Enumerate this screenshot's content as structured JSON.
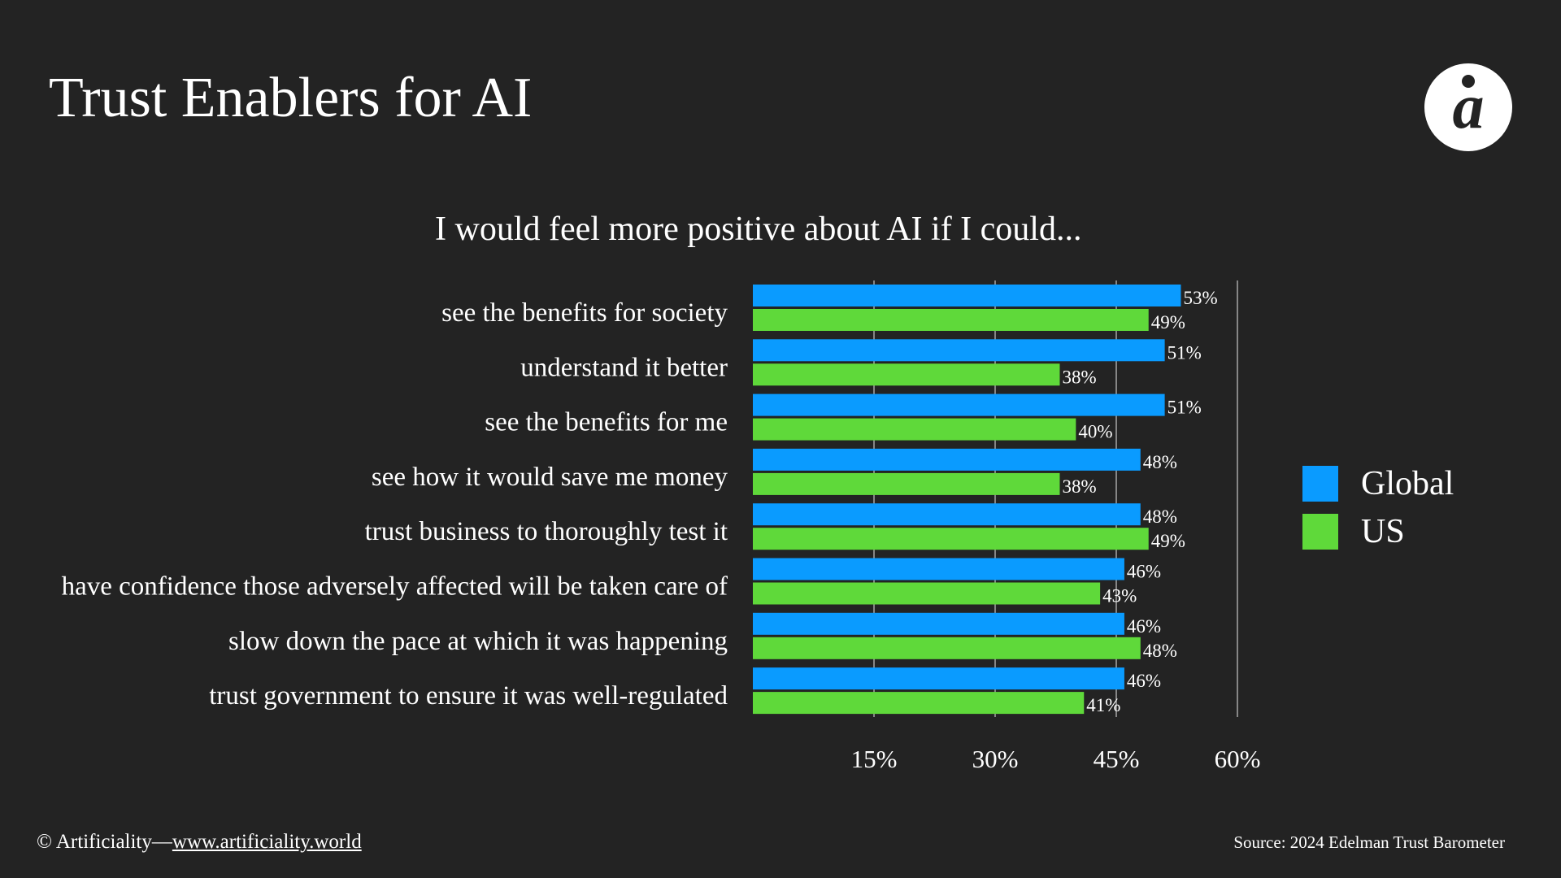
{
  "title": "Trust Enablers for AI",
  "logo_text": "a",
  "footer": {
    "copyright": "© Artificiality—",
    "link": "www.artificiality.world",
    "source": "Source: 2024 Edelman Trust Barometer"
  },
  "colors": {
    "background": "#232323",
    "global": "#0a9bff",
    "us": "#5fd93a"
  },
  "chart_data": {
    "type": "bar",
    "orientation": "horizontal",
    "title": "I would feel more positive about AI if I could...",
    "categories": [
      "see the benefits for society",
      "understand it better",
      "see the benefits for me",
      "see how it would save me money",
      "trust business to thoroughly test it",
      "have confidence those adversely affected will be taken care of",
      "slow down the pace at which it was happening",
      "trust government to ensure it was well-regulated"
    ],
    "series": [
      {
        "name": "Global",
        "color": "#0a9bff",
        "values": [
          53,
          51,
          51,
          48,
          48,
          46,
          46,
          46
        ]
      },
      {
        "name": "US",
        "color": "#5fd93a",
        "values": [
          49,
          38,
          40,
          38,
          49,
          43,
          48,
          41
        ]
      }
    ],
    "xlim": [
      0,
      60
    ],
    "xticks": [
      "15%",
      "30%",
      "45%",
      "60%"
    ],
    "xtick_values": [
      15,
      30,
      45,
      60
    ],
    "grid": true,
    "legend": "right",
    "value_suffix": "%"
  }
}
